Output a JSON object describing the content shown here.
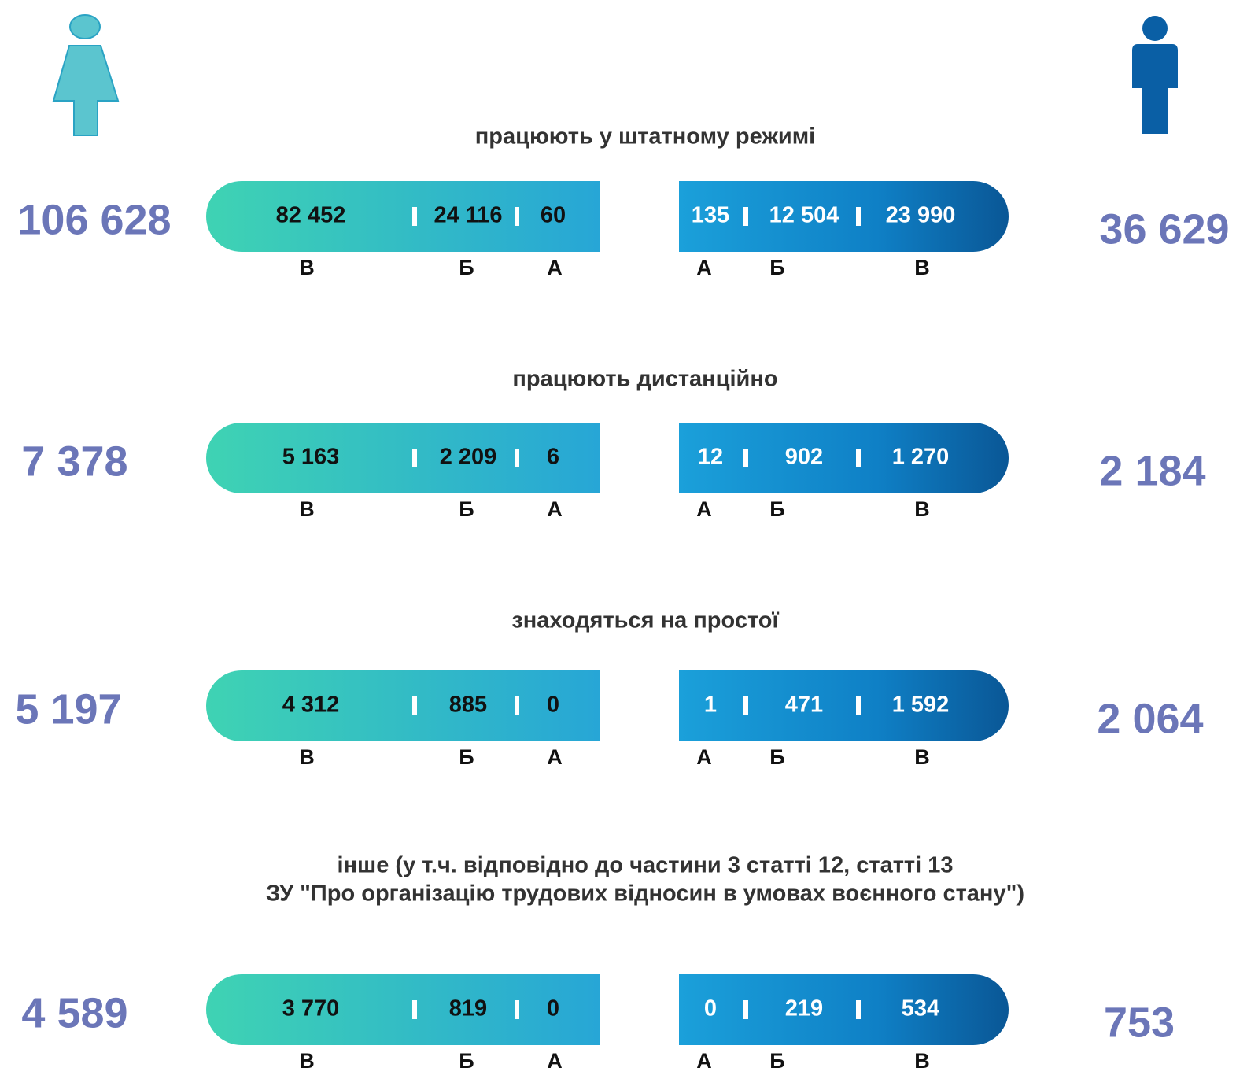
{
  "sections": [
    {
      "title": [
        "працюють у штатному режимі"
      ],
      "women": {
        "total": "106 628",
        "parts": [
          {
            "value": "82 452",
            "label": "В"
          },
          {
            "value": "24 116",
            "label": "Б"
          },
          {
            "value": "60",
            "label": "А"
          }
        ]
      },
      "men": {
        "total": "36 629",
        "parts": [
          {
            "value": "135",
            "label": "А"
          },
          {
            "value": "12 504",
            "label": "Б"
          },
          {
            "value": "23 990",
            "label": "В"
          }
        ]
      }
    },
    {
      "title": [
        "працюють дистанційно"
      ],
      "women": {
        "total": "7 378",
        "parts": [
          {
            "value": "5 163",
            "label": "В"
          },
          {
            "value": "2 209",
            "label": "Б"
          },
          {
            "value": "6",
            "label": "А"
          }
        ]
      },
      "men": {
        "total": "2 184",
        "parts": [
          {
            "value": "12",
            "label": "А"
          },
          {
            "value": "902",
            "label": "Б"
          },
          {
            "value": "1 270",
            "label": "В"
          }
        ]
      }
    },
    {
      "title": [
        "знаходяться на простої"
      ],
      "women": {
        "total": "5 197",
        "parts": [
          {
            "value": "4 312",
            "label": "В"
          },
          {
            "value": "885",
            "label": "Б"
          },
          {
            "value": "0",
            "label": "А"
          }
        ]
      },
      "men": {
        "total": "2 064",
        "parts": [
          {
            "value": "1",
            "label": "А"
          },
          {
            "value": "471",
            "label": "Б"
          },
          {
            "value": "1 592",
            "label": "В"
          }
        ]
      }
    },
    {
      "title": [
        "інше (у т.ч. відповідно до частини 3 статті 12, статті 13",
        "ЗУ \"Про організацію трудових відносин в умовах воєнного стану\")"
      ],
      "women": {
        "total": "4 589",
        "parts": [
          {
            "value": "3 770",
            "label": "В"
          },
          {
            "value": "819",
            "label": "Б"
          },
          {
            "value": "0",
            "label": "А"
          }
        ]
      },
      "men": {
        "total": "753",
        "parts": [
          {
            "value": "0",
            "label": "А"
          },
          {
            "value": "219",
            "label": "Б"
          },
          {
            "value": "534",
            "label": "В"
          }
        ]
      }
    }
  ]
}
